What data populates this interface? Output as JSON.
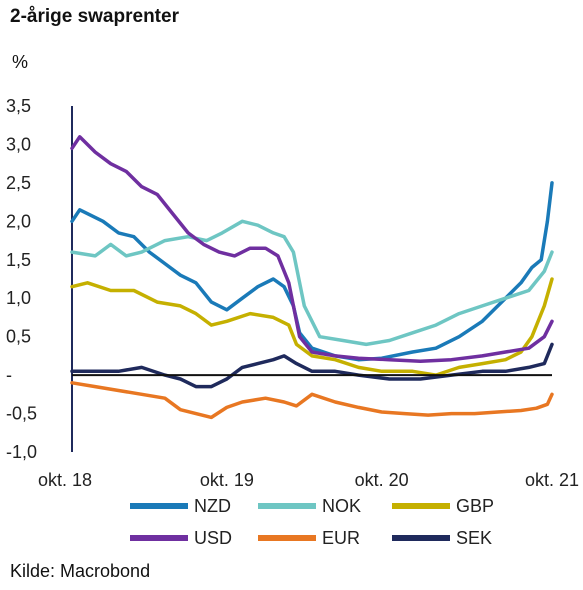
{
  "title": "2-årige swaprenter",
  "unit": "%",
  "source": "Kilde: Macrobond",
  "chart_data": {
    "type": "line",
    "title": "2-årige swaprenter",
    "ylabel": "%",
    "ylim": [
      -1.0,
      3.5
    ],
    "xlim": [
      2018.75,
      2021.85
    ],
    "y_ticks": [
      {
        "value": 3.5,
        "label": "3,5"
      },
      {
        "value": 3.0,
        "label": "3,0"
      },
      {
        "value": 2.5,
        "label": "2,5"
      },
      {
        "value": 2.0,
        "label": "2,0"
      },
      {
        "value": 1.5,
        "label": "1,5"
      },
      {
        "value": 1.0,
        "label": "1,0"
      },
      {
        "value": 0.5,
        "label": "0,5"
      },
      {
        "value": 0.0,
        "label": "-"
      },
      {
        "value": -0.5,
        "label": "-0,5"
      },
      {
        "value": -1.0,
        "label": "-1,0"
      }
    ],
    "x_ticks": [
      {
        "value": 2018.75,
        "label": "okt. 18"
      },
      {
        "value": 2019.75,
        "label": "okt. 19"
      },
      {
        "value": 2020.75,
        "label": "okt. 20"
      },
      {
        "value": 2021.75,
        "label": "okt. 21"
      }
    ],
    "legend_position": "bottom",
    "series": [
      {
        "name": "NZD",
        "color": "#1a7ab8",
        "x": [
          2018.75,
          2018.8,
          2018.95,
          2019.05,
          2019.15,
          2019.25,
          2019.35,
          2019.45,
          2019.55,
          2019.65,
          2019.75,
          2019.85,
          2019.95,
          2020.05,
          2020.12,
          2020.18,
          2020.22,
          2020.3,
          2020.45,
          2020.6,
          2020.75,
          2020.95,
          2021.1,
          2021.25,
          2021.4,
          2021.55,
          2021.65,
          2021.72,
          2021.78,
          2021.82,
          2021.85
        ],
        "y": [
          2.0,
          2.15,
          2.0,
          1.85,
          1.8,
          1.6,
          1.45,
          1.3,
          1.2,
          0.95,
          0.85,
          1.0,
          1.15,
          1.25,
          1.15,
          0.9,
          0.55,
          0.35,
          0.25,
          0.2,
          0.22,
          0.3,
          0.35,
          0.5,
          0.7,
          1.0,
          1.2,
          1.4,
          1.5,
          2.0,
          2.5
        ]
      },
      {
        "name": "NOK",
        "color": "#6ec6c3",
        "x": [
          2018.75,
          2018.9,
          2019.0,
          2019.1,
          2019.2,
          2019.35,
          2019.5,
          2019.62,
          2019.72,
          2019.85,
          2019.95,
          2020.05,
          2020.12,
          2020.18,
          2020.25,
          2020.35,
          2020.5,
          2020.65,
          2020.8,
          2020.95,
          2021.1,
          2021.25,
          2021.4,
          2021.55,
          2021.7,
          2021.8,
          2021.85
        ],
        "y": [
          1.6,
          1.55,
          1.7,
          1.55,
          1.6,
          1.75,
          1.8,
          1.75,
          1.85,
          2.0,
          1.95,
          1.85,
          1.8,
          1.6,
          0.9,
          0.5,
          0.45,
          0.4,
          0.45,
          0.55,
          0.65,
          0.8,
          0.9,
          1.0,
          1.1,
          1.35,
          1.6
        ]
      },
      {
        "name": "GBP",
        "color": "#c5b000",
        "x": [
          2018.75,
          2018.85,
          2019.0,
          2019.15,
          2019.3,
          2019.45,
          2019.55,
          2019.65,
          2019.75,
          2019.9,
          2020.05,
          2020.15,
          2020.2,
          2020.3,
          2020.45,
          2020.6,
          2020.75,
          2020.95,
          2021.1,
          2021.25,
          2021.4,
          2021.55,
          2021.65,
          2021.72,
          2021.8,
          2021.85
        ],
        "y": [
          1.15,
          1.2,
          1.1,
          1.1,
          0.95,
          0.9,
          0.8,
          0.65,
          0.7,
          0.8,
          0.75,
          0.65,
          0.4,
          0.25,
          0.2,
          0.1,
          0.05,
          0.05,
          0.0,
          0.1,
          0.15,
          0.2,
          0.3,
          0.5,
          0.9,
          1.25
        ]
      },
      {
        "name": "USD",
        "color": "#6f2fa0",
        "x": [
          2018.75,
          2018.8,
          2018.9,
          2019.0,
          2019.1,
          2019.2,
          2019.3,
          2019.4,
          2019.5,
          2019.6,
          2019.7,
          2019.8,
          2019.9,
          2020.0,
          2020.08,
          2020.15,
          2020.22,
          2020.3,
          2020.45,
          2020.6,
          2020.8,
          2021.0,
          2021.2,
          2021.4,
          2021.55,
          2021.7,
          2021.8,
          2021.85
        ],
        "y": [
          2.95,
          3.1,
          2.9,
          2.75,
          2.65,
          2.45,
          2.35,
          2.1,
          1.85,
          1.7,
          1.6,
          1.55,
          1.65,
          1.65,
          1.55,
          1.2,
          0.5,
          0.3,
          0.25,
          0.22,
          0.2,
          0.18,
          0.2,
          0.25,
          0.3,
          0.35,
          0.5,
          0.7
        ]
      },
      {
        "name": "EUR",
        "color": "#e87722",
        "x": [
          2018.75,
          2018.9,
          2019.05,
          2019.2,
          2019.35,
          2019.45,
          2019.55,
          2019.65,
          2019.75,
          2019.85,
          2020.0,
          2020.12,
          2020.2,
          2020.3,
          2020.45,
          2020.6,
          2020.75,
          2020.9,
          2021.05,
          2021.2,
          2021.35,
          2021.5,
          2021.65,
          2021.75,
          2021.82,
          2021.85
        ],
        "y": [
          -0.1,
          -0.15,
          -0.2,
          -0.25,
          -0.3,
          -0.45,
          -0.5,
          -0.55,
          -0.42,
          -0.35,
          -0.3,
          -0.35,
          -0.4,
          -0.25,
          -0.35,
          -0.42,
          -0.48,
          -0.5,
          -0.52,
          -0.5,
          -0.5,
          -0.48,
          -0.46,
          -0.43,
          -0.38,
          -0.25
        ]
      },
      {
        "name": "SEK",
        "color": "#1f2a5c",
        "x": [
          2018.75,
          2018.9,
          2019.05,
          2019.2,
          2019.35,
          2019.45,
          2019.55,
          2019.65,
          2019.75,
          2019.85,
          2019.95,
          2020.05,
          2020.12,
          2020.2,
          2020.3,
          2020.45,
          2020.6,
          2020.8,
          2021.0,
          2021.2,
          2021.4,
          2021.55,
          2021.7,
          2021.8,
          2021.85
        ],
        "y": [
          0.05,
          0.05,
          0.05,
          0.1,
          0.0,
          -0.05,
          -0.15,
          -0.15,
          -0.05,
          0.1,
          0.15,
          0.2,
          0.25,
          0.15,
          0.05,
          0.05,
          0.0,
          -0.05,
          -0.05,
          0.0,
          0.05,
          0.05,
          0.1,
          0.15,
          0.4
        ]
      }
    ]
  }
}
